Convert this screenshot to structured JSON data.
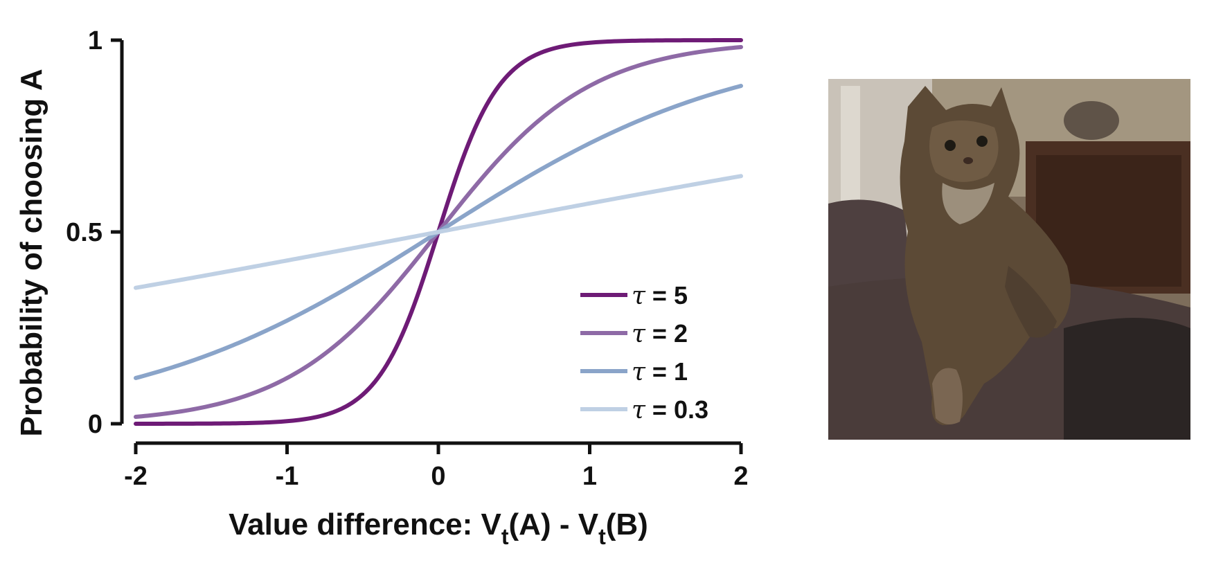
{
  "chart_data": {
    "type": "line",
    "title": "",
    "xlabel": {
      "prefix": "Value difference: V",
      "sub1": "t",
      "middle": "(A) - V",
      "sub2": "t",
      "suffix": "(B)"
    },
    "ylabel": "Probability of choosing A",
    "xlim": [
      -2,
      2
    ],
    "ylim": [
      0,
      1
    ],
    "xticks": [
      -2,
      -1,
      0,
      1,
      2
    ],
    "xtick_labels": [
      "-2",
      "-1",
      "0",
      "1",
      "2"
    ],
    "yticks": [
      0,
      0.5,
      1
    ],
    "ytick_labels": [
      "0",
      "0.5",
      "1"
    ],
    "grid": false,
    "legend_position": "bottom-right",
    "function": "logistic: p = 1 / (1 + exp(-tau * x))",
    "series": [
      {
        "name": "τ =  5",
        "tau": 5,
        "color": "#6e1b76",
        "x": [
          -2,
          -1.5,
          -1,
          -0.5,
          0,
          0.5,
          1,
          1.5,
          2
        ],
        "values": [
          0.0,
          0.0006,
          0.0067,
          0.0759,
          0.5,
          0.9241,
          0.9933,
          0.9994,
          1.0
        ]
      },
      {
        "name": "τ =  2",
        "tau": 2,
        "color": "#8e6aa6",
        "x": [
          -2,
          -1.5,
          -1,
          -0.5,
          0,
          0.5,
          1,
          1.5,
          2
        ],
        "values": [
          0.018,
          0.047,
          0.119,
          0.269,
          0.5,
          0.731,
          0.881,
          0.953,
          0.982
        ]
      },
      {
        "name": "τ =  1",
        "tau": 1,
        "color": "#8aa4c9",
        "x": [
          -2,
          -1.5,
          -1,
          -0.5,
          0,
          0.5,
          1,
          1.5,
          2
        ],
        "values": [
          0.119,
          0.182,
          0.269,
          0.378,
          0.5,
          0.622,
          0.731,
          0.818,
          0.881
        ]
      },
      {
        "name": "τ = 0.3",
        "tau": 0.3,
        "color": "#bfd0e4",
        "x": [
          -2,
          -1.5,
          -1,
          -0.5,
          0,
          0.5,
          1,
          1.5,
          2
        ],
        "values": [
          0.354,
          0.389,
          0.426,
          0.463,
          0.5,
          0.537,
          0.574,
          0.611,
          0.646
        ]
      }
    ]
  },
  "photo": {
    "subject": "tabby-cat-photo"
  }
}
